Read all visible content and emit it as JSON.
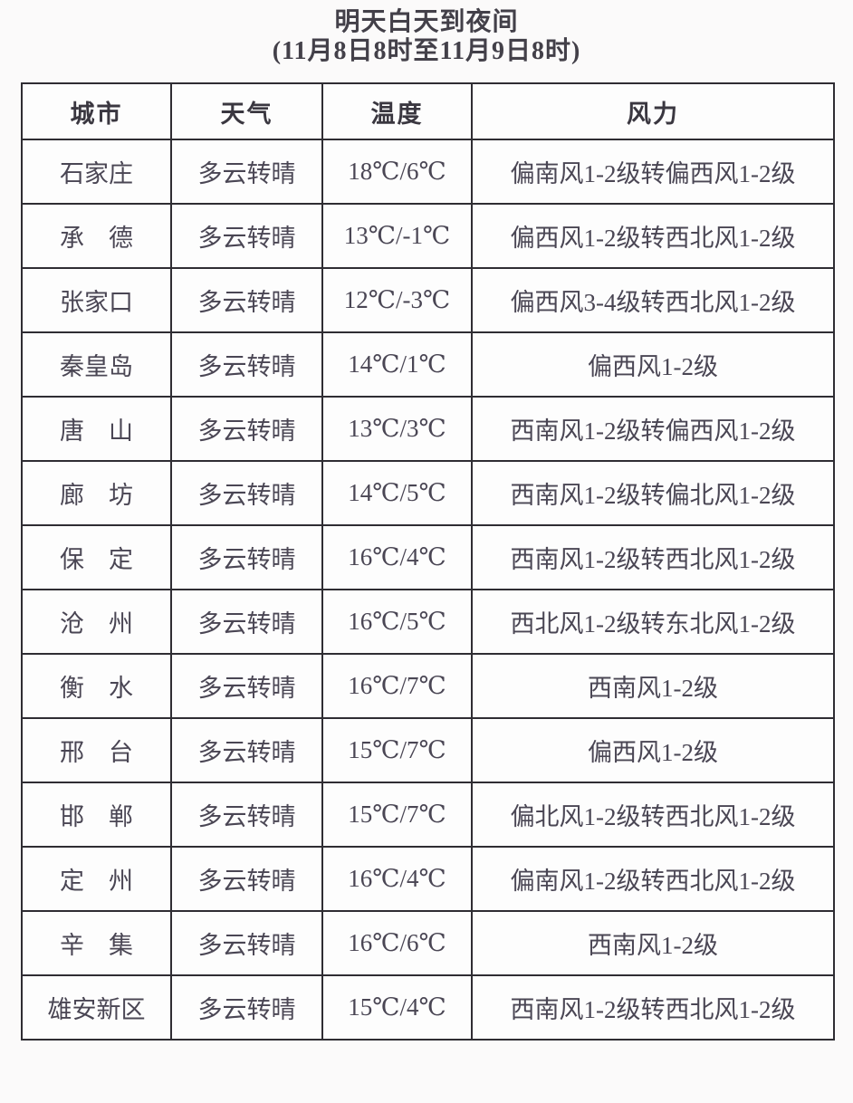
{
  "title": {
    "line1": "明天白天到夜间",
    "line2": "(11月8日8时至11月9日8时)"
  },
  "table": {
    "headers": [
      "城市",
      "天气",
      "温度",
      "风力"
    ],
    "rows": [
      {
        "city": "石家庄",
        "weather": "多云转晴",
        "temp": "18℃/6℃",
        "wind": "偏南风1-2级转偏西风1-2级"
      },
      {
        "city": "承　德",
        "weather": "多云转晴",
        "temp": "13℃/-1℃",
        "wind": "偏西风1-2级转西北风1-2级"
      },
      {
        "city": "张家口",
        "weather": "多云转晴",
        "temp": "12℃/-3℃",
        "wind": "偏西风3-4级转西北风1-2级"
      },
      {
        "city": "秦皇岛",
        "weather": "多云转晴",
        "temp": "14℃/1℃",
        "wind": "偏西风1-2级"
      },
      {
        "city": "唐　山",
        "weather": "多云转晴",
        "temp": "13℃/3℃",
        "wind": "西南风1-2级转偏西风1-2级"
      },
      {
        "city": "廊　坊",
        "weather": "多云转晴",
        "temp": "14℃/5℃",
        "wind": "西南风1-2级转偏北风1-2级"
      },
      {
        "city": "保　定",
        "weather": "多云转晴",
        "temp": "16℃/4℃",
        "wind": "西南风1-2级转西北风1-2级"
      },
      {
        "city": "沧　州",
        "weather": "多云转晴",
        "temp": "16℃/5℃",
        "wind": "西北风1-2级转东北风1-2级"
      },
      {
        "city": "衡　水",
        "weather": "多云转晴",
        "temp": "16℃/7℃",
        "wind": "西南风1-2级"
      },
      {
        "city": "邢　台",
        "weather": "多云转晴",
        "temp": "15℃/7℃",
        "wind": "偏西风1-2级"
      },
      {
        "city": "邯　郸",
        "weather": "多云转晴",
        "temp": "15℃/7℃",
        "wind": "偏北风1-2级转西北风1-2级"
      },
      {
        "city": "定　州",
        "weather": "多云转晴",
        "temp": "16℃/4℃",
        "wind": "偏南风1-2级转西北风1-2级"
      },
      {
        "city": "辛　集",
        "weather": "多云转晴",
        "temp": "16℃/6℃",
        "wind": "西南风1-2级"
      },
      {
        "city": "雄安新区",
        "weather": "多云转晴",
        "temp": "15℃/4℃",
        "wind": "西南风1-2级转西北风1-2级"
      }
    ]
  },
  "colors": {
    "temperature_red": "#bf3a30",
    "body_text": "#4a4654",
    "border": "#2f2d33",
    "background": "#fbfafa"
  }
}
